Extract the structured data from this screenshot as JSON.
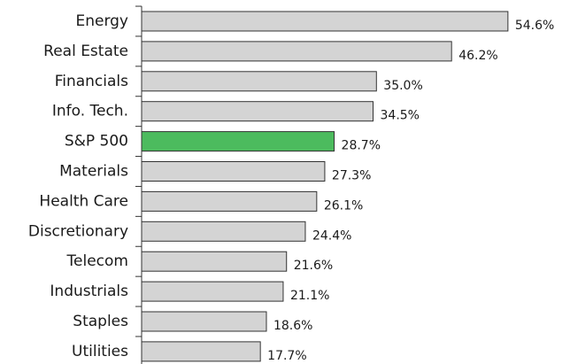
{
  "chart_data": {
    "type": "barh",
    "categories": [
      "Energy",
      "Real Estate",
      "Financials",
      "Info. Tech.",
      "S&P 500",
      "Materials",
      "Health Care",
      "Discretionary",
      "Telecom",
      "Industrials",
      "Staples",
      "Utilities"
    ],
    "values": [
      54.6,
      46.2,
      35.0,
      34.5,
      28.7,
      27.3,
      26.1,
      24.4,
      21.6,
      21.1,
      18.6,
      17.7
    ],
    "value_labels": [
      "54.6%",
      "46.2%",
      "35.0%",
      "34.5%",
      "28.7%",
      "27.3%",
      "26.1%",
      "24.4%",
      "21.6%",
      "21.1%",
      "18.6%",
      "17.7%"
    ],
    "colors": [
      "#d4d4d4",
      "#d4d4d4",
      "#d4d4d4",
      "#d4d4d4",
      "#4cbb5e",
      "#d4d4d4",
      "#d4d4d4",
      "#d4d4d4",
      "#d4d4d4",
      "#d4d4d4",
      "#d4d4d4",
      "#d4d4d4"
    ]
  }
}
